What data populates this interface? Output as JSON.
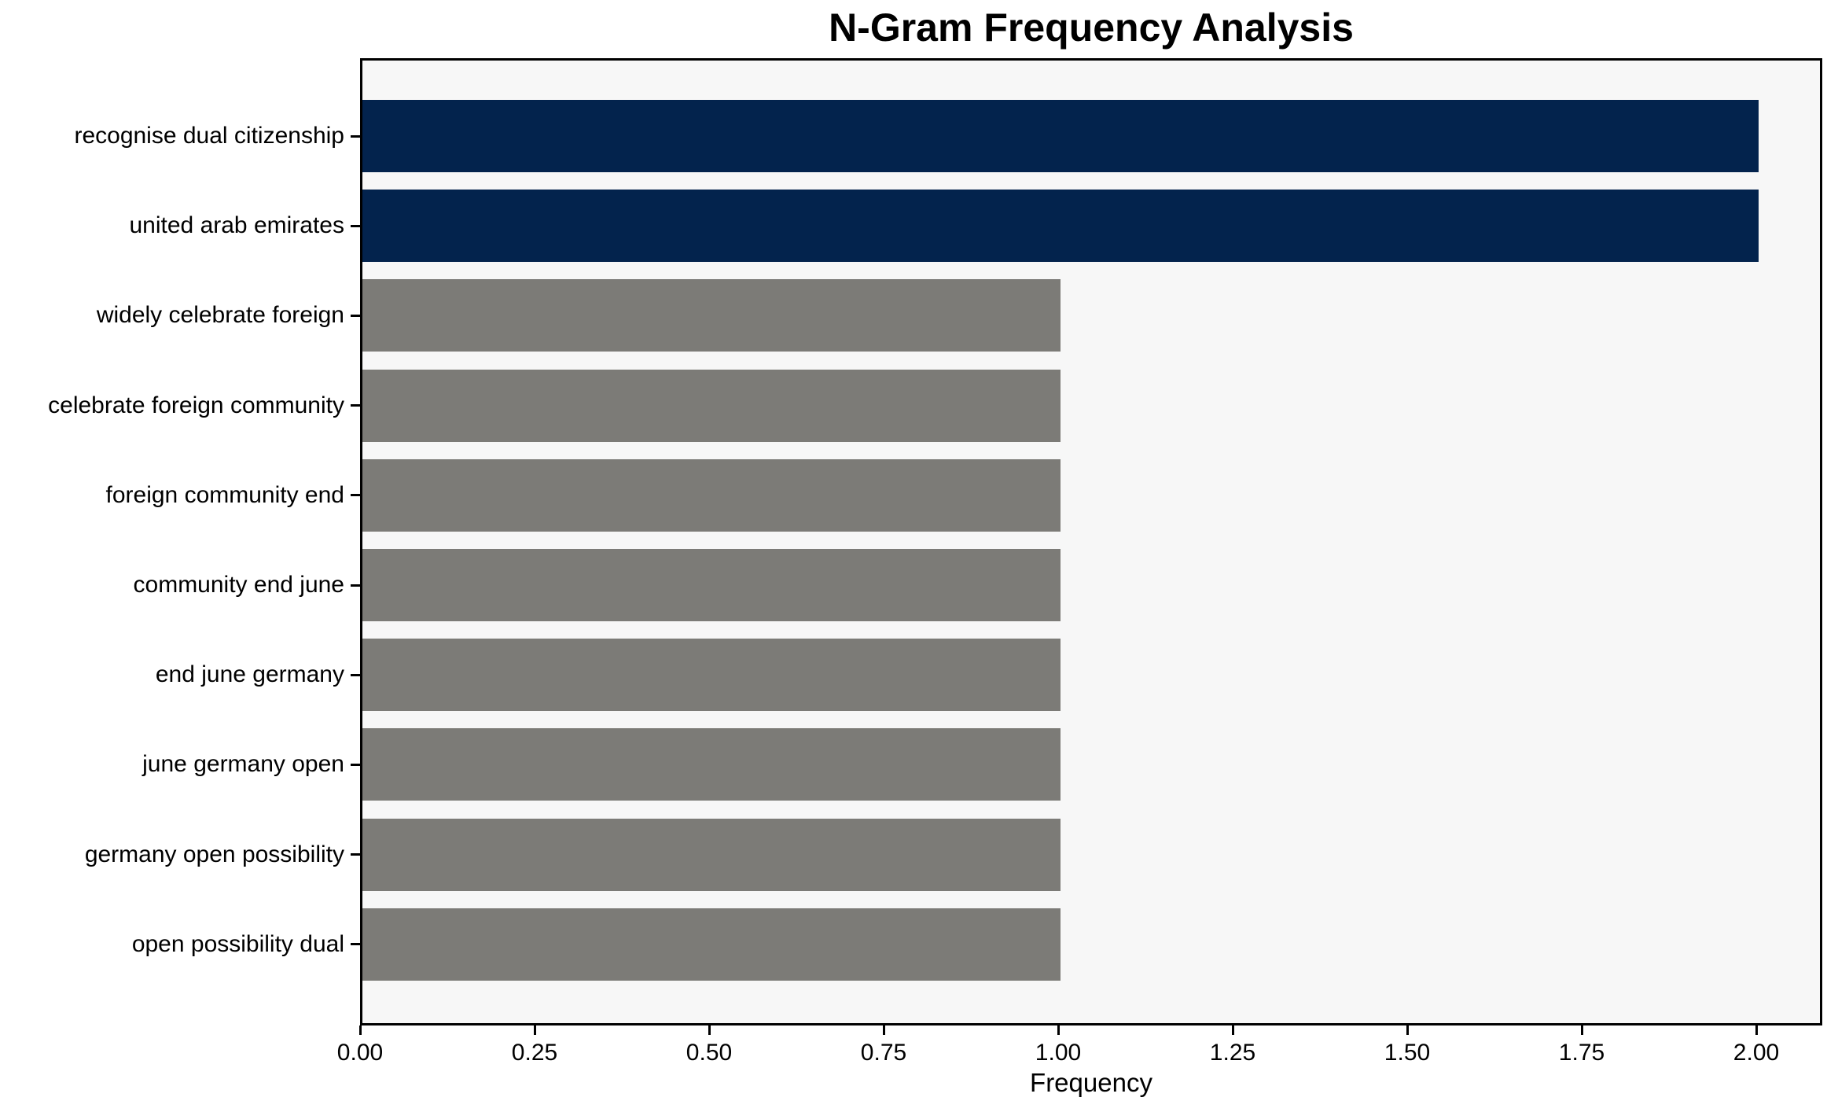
{
  "chart_data": {
    "type": "bar",
    "orientation": "horizontal",
    "title": "N-Gram Frequency Analysis",
    "xlabel": "Frequency",
    "ylabel": "",
    "categories": [
      "recognise dual citizenship",
      "united arab emirates",
      "widely celebrate foreign",
      "celebrate foreign community",
      "foreign community end",
      "community end june",
      "end june germany",
      "june germany open",
      "germany open possibility",
      "open possibility dual"
    ],
    "values": [
      2,
      2,
      1,
      1,
      1,
      1,
      1,
      1,
      1,
      1
    ],
    "bar_colors": [
      "#03234d",
      "#03234d",
      "#7c7b77",
      "#7c7b77",
      "#7c7b77",
      "#7c7b77",
      "#7c7b77",
      "#7c7b77",
      "#7c7b77",
      "#7c7b77"
    ],
    "x_tick_values": [
      0,
      0.25,
      0.5,
      0.75,
      1.0,
      1.25,
      1.5,
      1.75,
      2.0
    ],
    "x_tick_labels": [
      "0.00",
      "0.25",
      "0.50",
      "0.75",
      "1.00",
      "1.25",
      "1.50",
      "1.75",
      "2.00"
    ],
    "xlim": [
      0,
      2.1
    ],
    "grid": false,
    "legend": null,
    "colors": {
      "highlight_bar": "#03234d",
      "base_bar": "#7c7b77",
      "plot_background": "#f7f7f7",
      "figure_background": "#ffffff",
      "spine": "#000000",
      "text": "#000000"
    }
  }
}
